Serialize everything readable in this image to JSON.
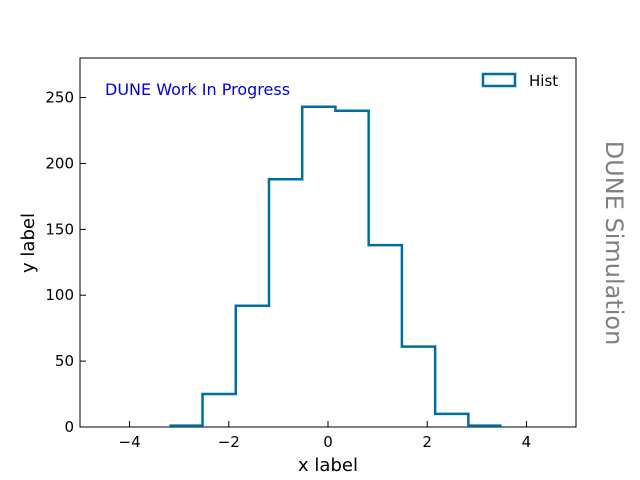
{
  "chart_data": {
    "type": "histogram",
    "style": "step",
    "bin_edges": [
      -3.2,
      -2.53,
      -1.86,
      -1.19,
      -0.52,
      0.15,
      0.82,
      1.49,
      2.16,
      2.83,
      3.5
    ],
    "counts": [
      1,
      25,
      92,
      188,
      243,
      240,
      138,
      61,
      10,
      1
    ],
    "series": [
      {
        "name": "Hist",
        "color": "#006e9f"
      }
    ],
    "xlabel": "x label",
    "ylabel": "y label",
    "xlim": [
      -5,
      5
    ],
    "ylim": [
      0,
      280
    ],
    "xticks": [
      -4,
      -2,
      0,
      2,
      4
    ],
    "xtick_labels": [
      "−4",
      "−2",
      "0",
      "2",
      "4"
    ],
    "yticks": [
      0,
      50,
      100,
      150,
      200,
      250
    ],
    "ytick_labels": [
      "0",
      "50",
      "100",
      "150",
      "200",
      "250"
    ],
    "legend": {
      "position": "top-right",
      "label": "Hist"
    },
    "annotation": {
      "text": "DUNE Work In Progress",
      "color": "#0000dd"
    },
    "side_label": {
      "text": "DUNE Simulation",
      "color": "#808080"
    },
    "grid": false
  }
}
